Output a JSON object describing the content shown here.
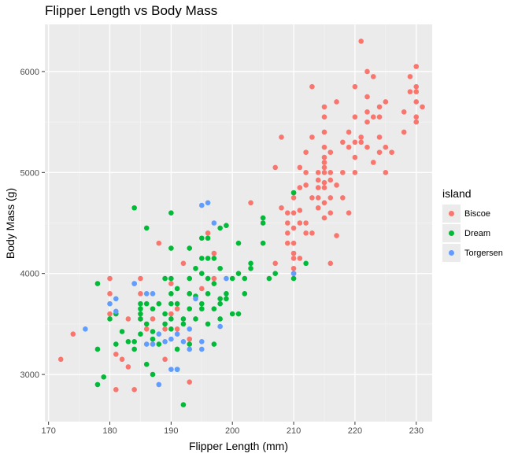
{
  "chart_data": {
    "type": "scatter",
    "title": "Flipper Length vs Body Mass",
    "xlabel": "Flipper Length (mm)",
    "ylabel": "Body Mass (g)",
    "xlim": [
      169.4,
      232.6
    ],
    "ylim": [
      2533,
      6467
    ],
    "x_ticks": [
      170,
      180,
      190,
      200,
      210,
      220,
      230
    ],
    "y_ticks": [
      3000,
      4000,
      5000,
      6000
    ],
    "x_tick_labels": [
      "170",
      "180",
      "190",
      "200",
      "210",
      "220",
      "230"
    ],
    "y_tick_labels": [
      "3000",
      "4000",
      "5000",
      "6000"
    ],
    "grid": true,
    "legend": {
      "title": "island",
      "position": "right"
    },
    "series": [
      {
        "name": "Biscoe",
        "color": "#F8766D",
        "points": [
          [
            172,
            3150
          ],
          [
            174,
            3400
          ],
          [
            180,
            3950
          ],
          [
            180,
            3800
          ],
          [
            180,
            3600
          ],
          [
            181,
            3200
          ],
          [
            181,
            2850
          ],
          [
            182,
            3150
          ],
          [
            183,
            3550
          ],
          [
            183,
            3075
          ],
          [
            184,
            3900
          ],
          [
            184,
            2850
          ],
          [
            185,
            3950
          ],
          [
            185,
            3800
          ],
          [
            185,
            3550
          ],
          [
            186,
            3450
          ],
          [
            187,
            3550
          ],
          [
            188,
            4300
          ],
          [
            189,
            3450
          ],
          [
            189,
            3150
          ],
          [
            190,
            3900
          ],
          [
            190,
            3600
          ],
          [
            191,
            3650
          ],
          [
            191,
            3450
          ],
          [
            192,
            4100
          ],
          [
            193,
            3800
          ],
          [
            193,
            3350
          ],
          [
            193,
            2925
          ],
          [
            195,
            3850
          ],
          [
            196,
            4400
          ],
          [
            197,
            3950
          ],
          [
            197,
            4200
          ],
          [
            203,
            4700
          ],
          [
            207,
            4100
          ],
          [
            208,
            5350
          ],
          [
            208,
            4650
          ],
          [
            207,
            5050
          ],
          [
            209,
            4400
          ],
          [
            209,
            4300
          ],
          [
            209,
            4600
          ],
          [
            209,
            4500
          ],
          [
            210,
            4150
          ],
          [
            210,
            4050
          ],
          [
            210,
            4000
          ],
          [
            210,
            4200
          ],
          [
            210,
            4750
          ],
          [
            210,
            4600
          ],
          [
            210,
            4450
          ],
          [
            210,
            4800
          ],
          [
            210,
            4300
          ],
          [
            211,
            4625
          ],
          [
            211,
            4500
          ],
          [
            211,
            5050
          ],
          [
            211,
            4850
          ],
          [
            211,
            4150
          ],
          [
            212,
            5000
          ],
          [
            212,
            5200
          ],
          [
            212,
            4875
          ],
          [
            212,
            4500
          ],
          [
            212,
            4400
          ],
          [
            213,
            4750
          ],
          [
            213,
            5850
          ],
          [
            213,
            4400
          ],
          [
            213,
            5350
          ],
          [
            214,
            4850
          ],
          [
            214,
            5000
          ],
          [
            214,
            4650
          ],
          [
            214,
            4750
          ],
          [
            214,
            4925
          ],
          [
            215,
            5000
          ],
          [
            215,
            4900
          ],
          [
            215,
            5150
          ],
          [
            215,
            5250
          ],
          [
            215,
            5100
          ],
          [
            215,
            5400
          ],
          [
            215,
            5550
          ],
          [
            215,
            5650
          ],
          [
            215,
            4550
          ],
          [
            215,
            5050
          ],
          [
            215,
            4700
          ],
          [
            215,
            4850
          ],
          [
            216,
            5000
          ],
          [
            216,
            4925
          ],
          [
            216,
            5200
          ],
          [
            216,
            4750
          ],
          [
            216,
            4600
          ],
          [
            216,
            4100
          ],
          [
            217,
            4375
          ],
          [
            217,
            5700
          ],
          [
            217,
            4875
          ],
          [
            218,
            5000
          ],
          [
            218,
            5300
          ],
          [
            218,
            4750
          ],
          [
            219,
            5250
          ],
          [
            219,
            5400
          ],
          [
            219,
            4600
          ],
          [
            220,
            5150
          ],
          [
            220,
            5300
          ],
          [
            220,
            5850
          ],
          [
            220,
            5000
          ],
          [
            220,
            5550
          ],
          [
            221,
            5300
          ],
          [
            221,
            6300
          ],
          [
            221,
            5350
          ],
          [
            222,
            5750
          ],
          [
            222,
            5600
          ],
          [
            222,
            5250
          ],
          [
            222,
            6000
          ],
          [
            222,
            5500
          ],
          [
            223,
            5550
          ],
          [
            223,
            5950
          ],
          [
            223,
            5100
          ],
          [
            224,
            5550
          ],
          [
            224,
            5650
          ],
          [
            224,
            5350
          ],
          [
            224,
            5200
          ],
          [
            225,
            5000
          ],
          [
            225,
            5250
          ],
          [
            225,
            5700
          ],
          [
            226,
            5200
          ],
          [
            228,
            5600
          ],
          [
            228,
            5400
          ],
          [
            229,
            5800
          ],
          [
            229,
            5950
          ],
          [
            230,
            5700
          ],
          [
            230,
            5800
          ],
          [
            230,
            6050
          ],
          [
            230,
            5850
          ],
          [
            230,
            5550
          ],
          [
            230,
            5500
          ],
          [
            231,
            5650
          ]
        ]
      },
      {
        "name": "Dream",
        "color": "#00BA38",
        "points": [
          [
            178,
            3900
          ],
          [
            178,
            3250
          ],
          [
            178,
            2900
          ],
          [
            179,
            2975
          ],
          [
            180,
            3550
          ],
          [
            181,
            3300
          ],
          [
            181,
            3600
          ],
          [
            182,
            3425
          ],
          [
            183,
            3325
          ],
          [
            184,
            4650
          ],
          [
            184,
            3325
          ],
          [
            184,
            3250
          ],
          [
            185,
            3700
          ],
          [
            185,
            3600
          ],
          [
            185,
            3550
          ],
          [
            185,
            3650
          ],
          [
            185,
            3400
          ],
          [
            186,
            3700
          ],
          [
            186,
            3500
          ],
          [
            186,
            4450
          ],
          [
            186,
            3100
          ],
          [
            187,
            3350
          ],
          [
            187,
            3650
          ],
          [
            187,
            3425
          ],
          [
            187,
            3000
          ],
          [
            188,
            3700
          ],
          [
            188,
            3300
          ],
          [
            189,
            3950
          ],
          [
            189,
            3600
          ],
          [
            189,
            3500
          ],
          [
            190,
            4250
          ],
          [
            190,
            4600
          ],
          [
            190,
            3450
          ],
          [
            190,
            3550
          ],
          [
            190,
            3950
          ],
          [
            190,
            3800
          ],
          [
            190,
            3700
          ],
          [
            191,
            3050
          ],
          [
            191,
            3700
          ],
          [
            191,
            3850
          ],
          [
            191,
            3250
          ],
          [
            192,
            3500
          ],
          [
            192,
            2700
          ],
          [
            192,
            3550
          ],
          [
            193,
            3650
          ],
          [
            193,
            3950
          ],
          [
            193,
            3800
          ],
          [
            193,
            3300
          ],
          [
            193,
            4250
          ],
          [
            194,
            4050
          ],
          [
            194,
            3775
          ],
          [
            194,
            3550
          ],
          [
            195,
            3650
          ],
          [
            195,
            3700
          ],
          [
            195,
            4000
          ],
          [
            195,
            4350
          ],
          [
            195,
            4150
          ],
          [
            196,
            4150
          ],
          [
            196,
            3800
          ],
          [
            196,
            4350
          ],
          [
            196,
            3950
          ],
          [
            196,
            3500
          ],
          [
            197,
            3650
          ],
          [
            197,
            3900
          ],
          [
            197,
            3300
          ],
          [
            197,
            4150
          ],
          [
            198,
            3700
          ],
          [
            198,
            4050
          ],
          [
            198,
            3750
          ],
          [
            198,
            4450
          ],
          [
            198,
            3550
          ],
          [
            199,
            3800
          ],
          [
            199,
            3750
          ],
          [
            199,
            4475
          ],
          [
            200,
            3950
          ],
          [
            200,
            3600
          ],
          [
            201,
            4000
          ],
          [
            201,
            4300
          ],
          [
            201,
            3600
          ],
          [
            202,
            3800
          ],
          [
            202,
            3950
          ],
          [
            203,
            4050
          ],
          [
            203,
            4100
          ],
          [
            205,
            4500
          ],
          [
            205,
            4550
          ],
          [
            205,
            4300
          ],
          [
            206,
            3950
          ],
          [
            207,
            4000
          ],
          [
            210,
            3950
          ],
          [
            210,
            4800
          ],
          [
            212,
            4100
          ]
        ]
      },
      {
        "name": "Torgersen",
        "color": "#619CFF",
        "points": [
          [
            176,
            3450
          ],
          [
            180,
            3700
          ],
          [
            181,
            3750
          ],
          [
            181,
            3625
          ],
          [
            184,
            3900
          ],
          [
            186,
            3800
          ],
          [
            186,
            3300
          ],
          [
            187,
            3800
          ],
          [
            187,
            3300
          ],
          [
            188,
            3400
          ],
          [
            188,
            2900
          ],
          [
            189,
            3325
          ],
          [
            190,
            3350
          ],
          [
            190,
            3050
          ],
          [
            191,
            3050
          ],
          [
            191,
            3400
          ],
          [
            192,
            3325
          ],
          [
            193,
            3250
          ],
          [
            193,
            3450
          ],
          [
            194,
            3750
          ],
          [
            195,
            4675
          ],
          [
            195,
            3250
          ],
          [
            195,
            3325
          ],
          [
            196,
            4700
          ],
          [
            197,
            4500
          ],
          [
            198,
            3475
          ],
          [
            199,
            3950
          ],
          [
            210,
            4000
          ]
        ]
      }
    ]
  }
}
